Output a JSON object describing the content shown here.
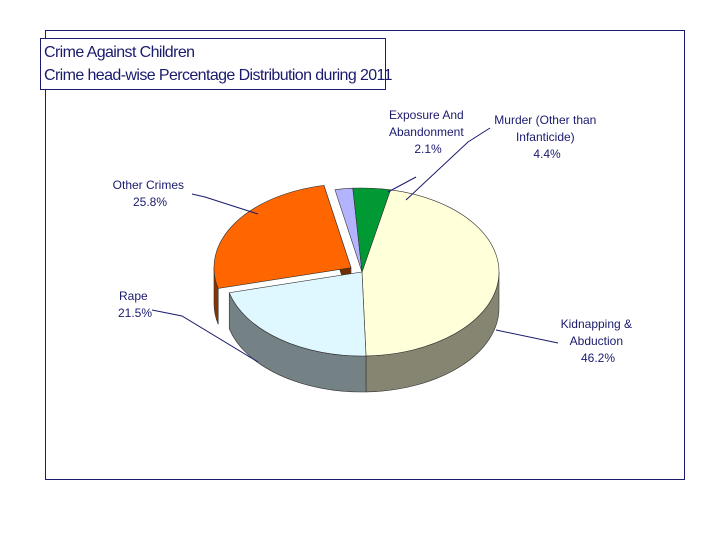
{
  "chart_data": {
    "type": "pie",
    "title": "Crime Against Children",
    "subtitle": "Crime head-wise Percentage Distribution during 2011",
    "slices": [
      {
        "label": "Kidnapping & Abduction",
        "value": 46.2,
        "value_label": "46.2%",
        "color": "#ffffd9"
      },
      {
        "label": "Rape",
        "value": 21.5,
        "value_label": "21.5%",
        "color": "#dff8ff"
      },
      {
        "label": "Other Crimes",
        "value": 25.8,
        "value_label": "25.8%",
        "color": "#ff6600"
      },
      {
        "label": "Exposure And Abandonment",
        "value": 2.1,
        "value_label": "2.1%",
        "color": "#b3b3ff"
      },
      {
        "label": "Murder (Other than Infanticide)",
        "value": 4.4,
        "value_label": "4.4%",
        "color": "#009933"
      }
    ],
    "labels": {
      "kidnapping": {
        "lines": [
          "Kidnapping &",
          "Abduction"
        ],
        "value": "46.2%"
      },
      "rape": {
        "lines": [
          "Rape"
        ],
        "value": "21.5%"
      },
      "other": {
        "lines": [
          "Other Crimes"
        ],
        "value": "25.8%"
      },
      "exposure": {
        "lines": [
          "Exposure And",
          "Abandonment"
        ],
        "value": "2.1%"
      },
      "murder": {
        "lines": [
          "Murder (Other than",
          "Infanticide)"
        ],
        "value": "4.4%"
      }
    }
  }
}
